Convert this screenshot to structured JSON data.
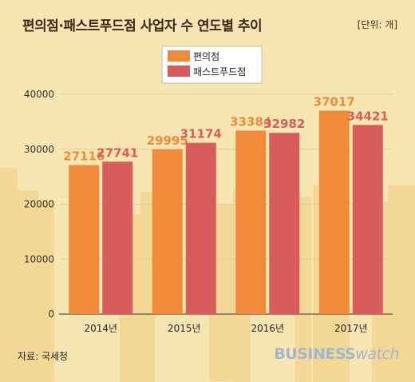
{
  "header": {
    "title": "편의점·패스트푸드점 사업자 수 연도별 추이",
    "unit": "[단위: 개]"
  },
  "footer": {
    "source": "자료: 국세청",
    "brand_bold": "BUSINESS",
    "brand_light": "watch"
  },
  "colors": {
    "background": "#f8e6b2",
    "series_convenience": "#ef8b3a",
    "series_fastfood": "#d95c5c",
    "skyline": "#f3d795",
    "grid": "#e0cfa0"
  },
  "chart_data": {
    "type": "bar",
    "categories": [
      "2014년",
      "2015년",
      "2016년",
      "2017년"
    ],
    "series": [
      {
        "name": "편의점",
        "values": [
          27116,
          29995,
          33384,
          37017
        ]
      },
      {
        "name": "패스트푸드점",
        "values": [
          27741,
          31174,
          32982,
          34421
        ]
      }
    ],
    "yticks": [
      0,
      10000,
      20000,
      30000,
      40000
    ],
    "ylim": [
      0,
      40000
    ],
    "legend_position": "top-center",
    "grid": true
  }
}
